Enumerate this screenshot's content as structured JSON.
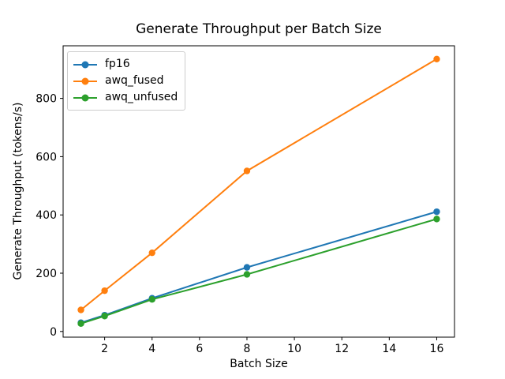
{
  "chart_data": {
    "type": "line",
    "title": "Generate Throughput per Batch Size",
    "xlabel": "Batch Size",
    "ylabel": "Generate Throughput (tokens/s)",
    "x": [
      1,
      2,
      4,
      8,
      16
    ],
    "series": [
      {
        "name": "fp16",
        "color": "#1f77b4",
        "values": [
          30,
          56,
          114,
          220,
          411
        ]
      },
      {
        "name": "awq_fused",
        "color": "#ff7f0e",
        "values": [
          74,
          140,
          270,
          551,
          935
        ]
      },
      {
        "name": "awq_unfused",
        "color": "#2ca02c",
        "values": [
          27,
          53,
          110,
          196,
          386
        ]
      }
    ],
    "marker": "o",
    "xticks": [
      2,
      4,
      6,
      8,
      10,
      12,
      14,
      16
    ],
    "yticks": [
      0,
      200,
      400,
      600,
      800
    ],
    "xlim": [
      0.25,
      16.75
    ],
    "ylim": [
      -19.5,
      980.5
    ],
    "grid": false,
    "legend_position": "upper left",
    "frame_color": "#000000",
    "background_color": "#ffffff"
  }
}
